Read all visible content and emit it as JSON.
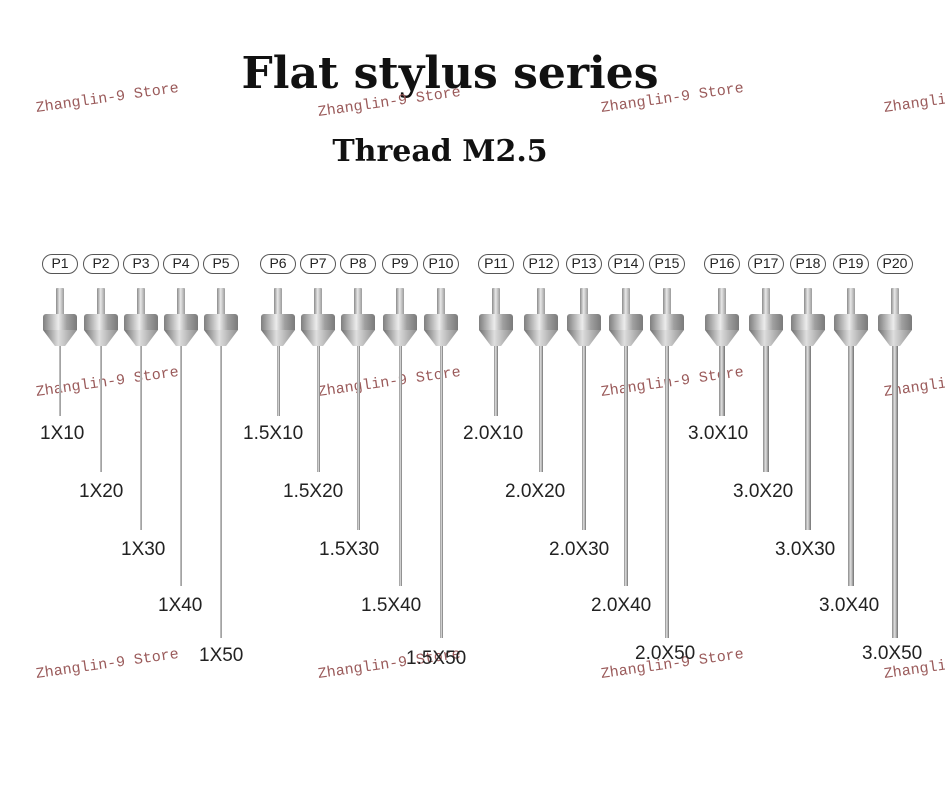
{
  "title": "Flat stylus series",
  "subtitle": "Thread M2.5",
  "watermark": "Zhanglin-9 Store",
  "styli": [
    {
      "id": "P1",
      "label": "1X10"
    },
    {
      "id": "P2",
      "label": "1X20"
    },
    {
      "id": "P3",
      "label": "1X30"
    },
    {
      "id": "P4",
      "label": "1X40"
    },
    {
      "id": "P5",
      "label": "1X50"
    },
    {
      "id": "P6",
      "label": "1.5X10"
    },
    {
      "id": "P7",
      "label": "1.5X20"
    },
    {
      "id": "P8",
      "label": "1.5X30"
    },
    {
      "id": "P9",
      "label": "1.5X40"
    },
    {
      "id": "P10",
      "label": "1.5X50"
    },
    {
      "id": "P11",
      "label": "2.0X10"
    },
    {
      "id": "P12",
      "label": "2.0X20"
    },
    {
      "id": "P13",
      "label": "2.0X30"
    },
    {
      "id": "P14",
      "label": "2.0X40"
    },
    {
      "id": "P15",
      "label": "2.0X50"
    },
    {
      "id": "P16",
      "label": "3.0X10"
    },
    {
      "id": "P17",
      "label": "3.0X20"
    },
    {
      "id": "P18",
      "label": "3.0X30"
    },
    {
      "id": "P19",
      "label": "3.0X40"
    },
    {
      "id": "P20",
      "label": "3.0X50"
    }
  ]
}
